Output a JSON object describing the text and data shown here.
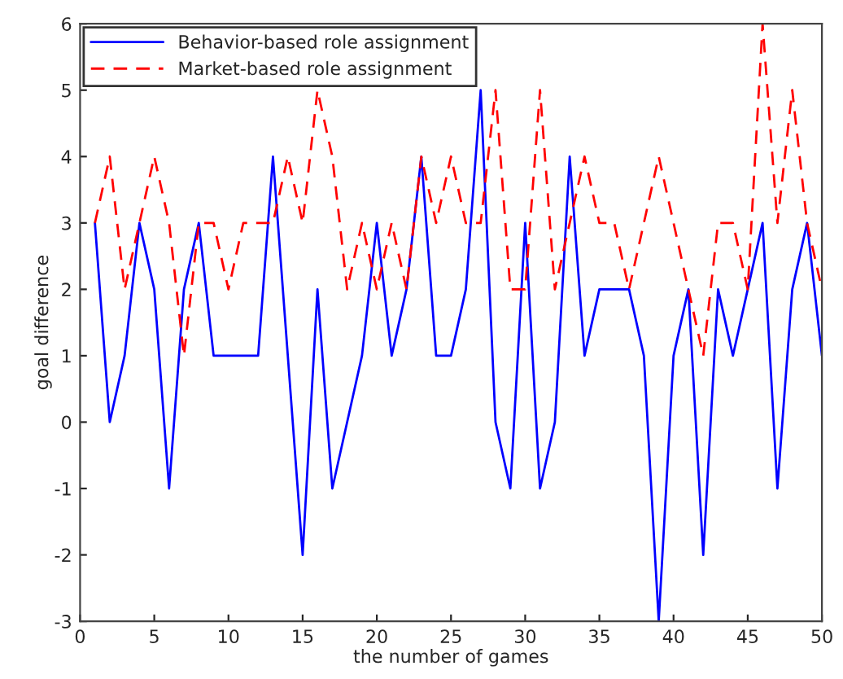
{
  "chart_data": {
    "type": "line",
    "xlabel": "the number of games",
    "ylabel": "goal difference",
    "x": [
      1,
      2,
      3,
      4,
      5,
      6,
      7,
      8,
      9,
      10,
      11,
      12,
      13,
      14,
      15,
      16,
      17,
      18,
      19,
      20,
      21,
      22,
      23,
      24,
      25,
      26,
      27,
      28,
      29,
      30,
      31,
      32,
      33,
      34,
      35,
      36,
      37,
      38,
      39,
      40,
      41,
      42,
      43,
      44,
      45,
      46,
      47,
      48,
      49,
      50
    ],
    "series": [
      {
        "name": "Behavior-based role assignment",
        "color": "#0000ff",
        "line_style": "solid",
        "values": [
          3,
          0,
          1,
          3,
          2,
          -1,
          2,
          3,
          1,
          1,
          1,
          1,
          4,
          1,
          -2,
          2,
          -1,
          0,
          1,
          3,
          1,
          2,
          4,
          1,
          1,
          2,
          5,
          0,
          -1,
          3,
          -1,
          0,
          4,
          1,
          2,
          2,
          2,
          1,
          -3,
          1,
          2,
          -2,
          2,
          1,
          2,
          3,
          -1,
          2,
          3,
          1
        ]
      },
      {
        "name": "Market-based role assignment",
        "color": "#ff0000",
        "line_style": "dashed",
        "values": [
          3,
          4,
          2,
          3,
          4,
          3,
          1,
          3,
          3,
          2,
          3,
          3,
          3,
          4,
          3,
          5,
          4,
          2,
          3,
          2,
          3,
          2,
          4,
          3,
          4,
          3,
          3,
          5,
          2,
          2,
          5,
          2,
          3,
          4,
          3,
          3,
          2,
          3,
          4,
          3,
          2,
          1,
          3,
          3,
          2,
          6,
          3,
          5,
          3,
          2
        ]
      }
    ],
    "xlim": [
      0,
      50
    ],
    "xticks": [
      0,
      5,
      10,
      15,
      20,
      25,
      30,
      35,
      40,
      45,
      50
    ],
    "ylim": [
      -3,
      6
    ],
    "yticks": [
      -3,
      -2,
      -1,
      0,
      1,
      2,
      3,
      4,
      5,
      6
    ],
    "grid": false,
    "legend": "top left",
    "marker": "none"
  }
}
